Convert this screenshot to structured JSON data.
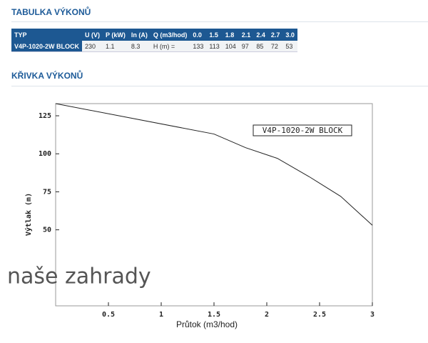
{
  "sections": [
    "TABULKA VÝKONŮ",
    "KŘIVKA VÝKONŮ"
  ],
  "table": {
    "header": [
      "TYP",
      "U (V)",
      "P (kW)",
      "In (A)",
      "Q (m3/hod)",
      "0.0",
      "1.5",
      "1.8",
      "2.1",
      "2.4",
      "2.7",
      "3.0"
    ],
    "rows": [
      [
        "V4P-1020-2W BLOCK",
        "230",
        "1.1",
        "8.3",
        "H (m) =",
        "133",
        "113",
        "104",
        "97",
        "85",
        "72",
        "53"
      ]
    ]
  },
  "chart_data": {
    "type": "line",
    "annotation": "V4P-1020-2W BLOCK",
    "watermark": "naše zahrady",
    "xlabel": "Průtok (m3/hod)",
    "ylabel": "Výtlak (m)",
    "x": [
      0,
      1.5,
      1.8,
      2.1,
      2.4,
      2.7,
      3.0
    ],
    "values": [
      133,
      113,
      104,
      97,
      85,
      72,
      53
    ],
    "color": "#222222",
    "xlim": [
      0,
      3
    ],
    "ylim": [
      0,
      133
    ],
    "xticks": [
      0.5,
      1,
      1.5,
      2,
      2.5,
      3
    ],
    "yticks": [
      50,
      75,
      100,
      125
    ],
    "grid": false
  }
}
